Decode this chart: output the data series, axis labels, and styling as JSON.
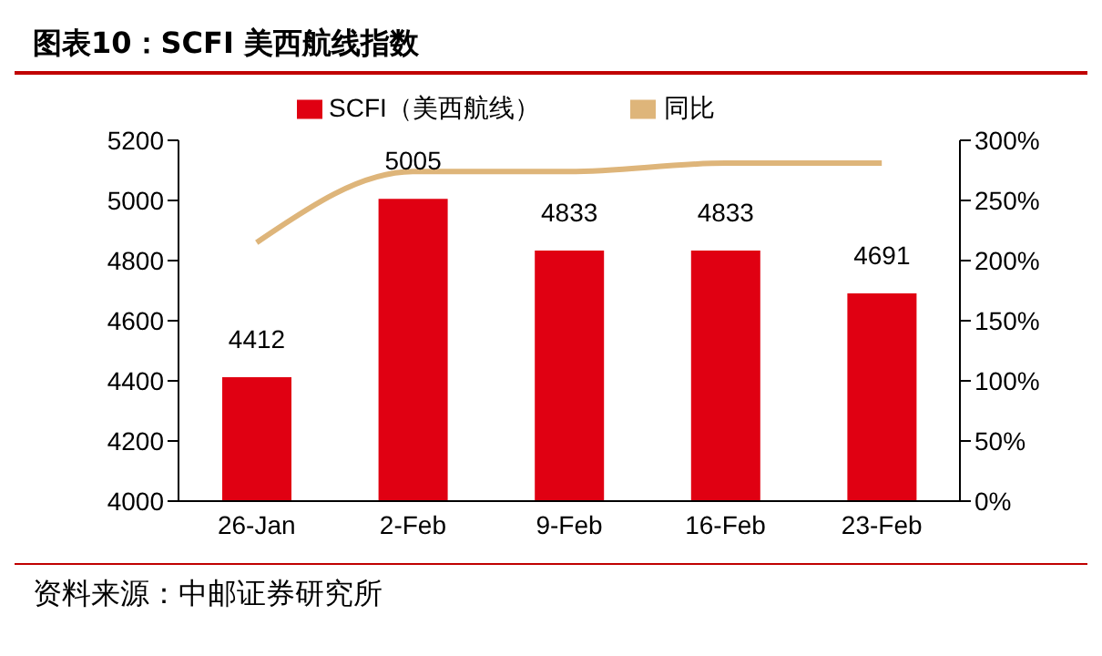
{
  "chart_data": {
    "type": "bar",
    "title": "图表10：SCFI 美西航线指数",
    "categories": [
      "26-Jan",
      "2-Feb",
      "9-Feb",
      "16-Feb",
      "23-Feb"
    ],
    "series": [
      {
        "name": "SCFI（美西航线）",
        "color": "#e00012",
        "values": [
          4412,
          5005,
          4833,
          4833,
          4691
        ],
        "data_labels": true
      },
      {
        "name": "同比",
        "type": "line",
        "axis": "y2",
        "color": "#deb57a",
        "values": [
          215,
          274,
          274,
          281,
          281
        ]
      }
    ],
    "ylim": [
      4000,
      5200
    ],
    "yticks": [
      4000,
      4200,
      4400,
      4600,
      4800,
      5000,
      5200
    ],
    "y2lim": [
      0,
      300
    ],
    "y2ticks": [
      {
        "value": 0,
        "label": "0%"
      },
      {
        "value": 50,
        "label": "50%"
      },
      {
        "value": 100,
        "label": "100%"
      },
      {
        "value": 150,
        "label": "150%"
      },
      {
        "value": 200,
        "label": "200%"
      },
      {
        "value": 250,
        "label": "250%"
      },
      {
        "value": 300,
        "label": "300%"
      }
    ],
    "legend": "top",
    "grid": false,
    "marker": "none",
    "annotations": [
      "资料来源：中邮证券研究所"
    ]
  }
}
